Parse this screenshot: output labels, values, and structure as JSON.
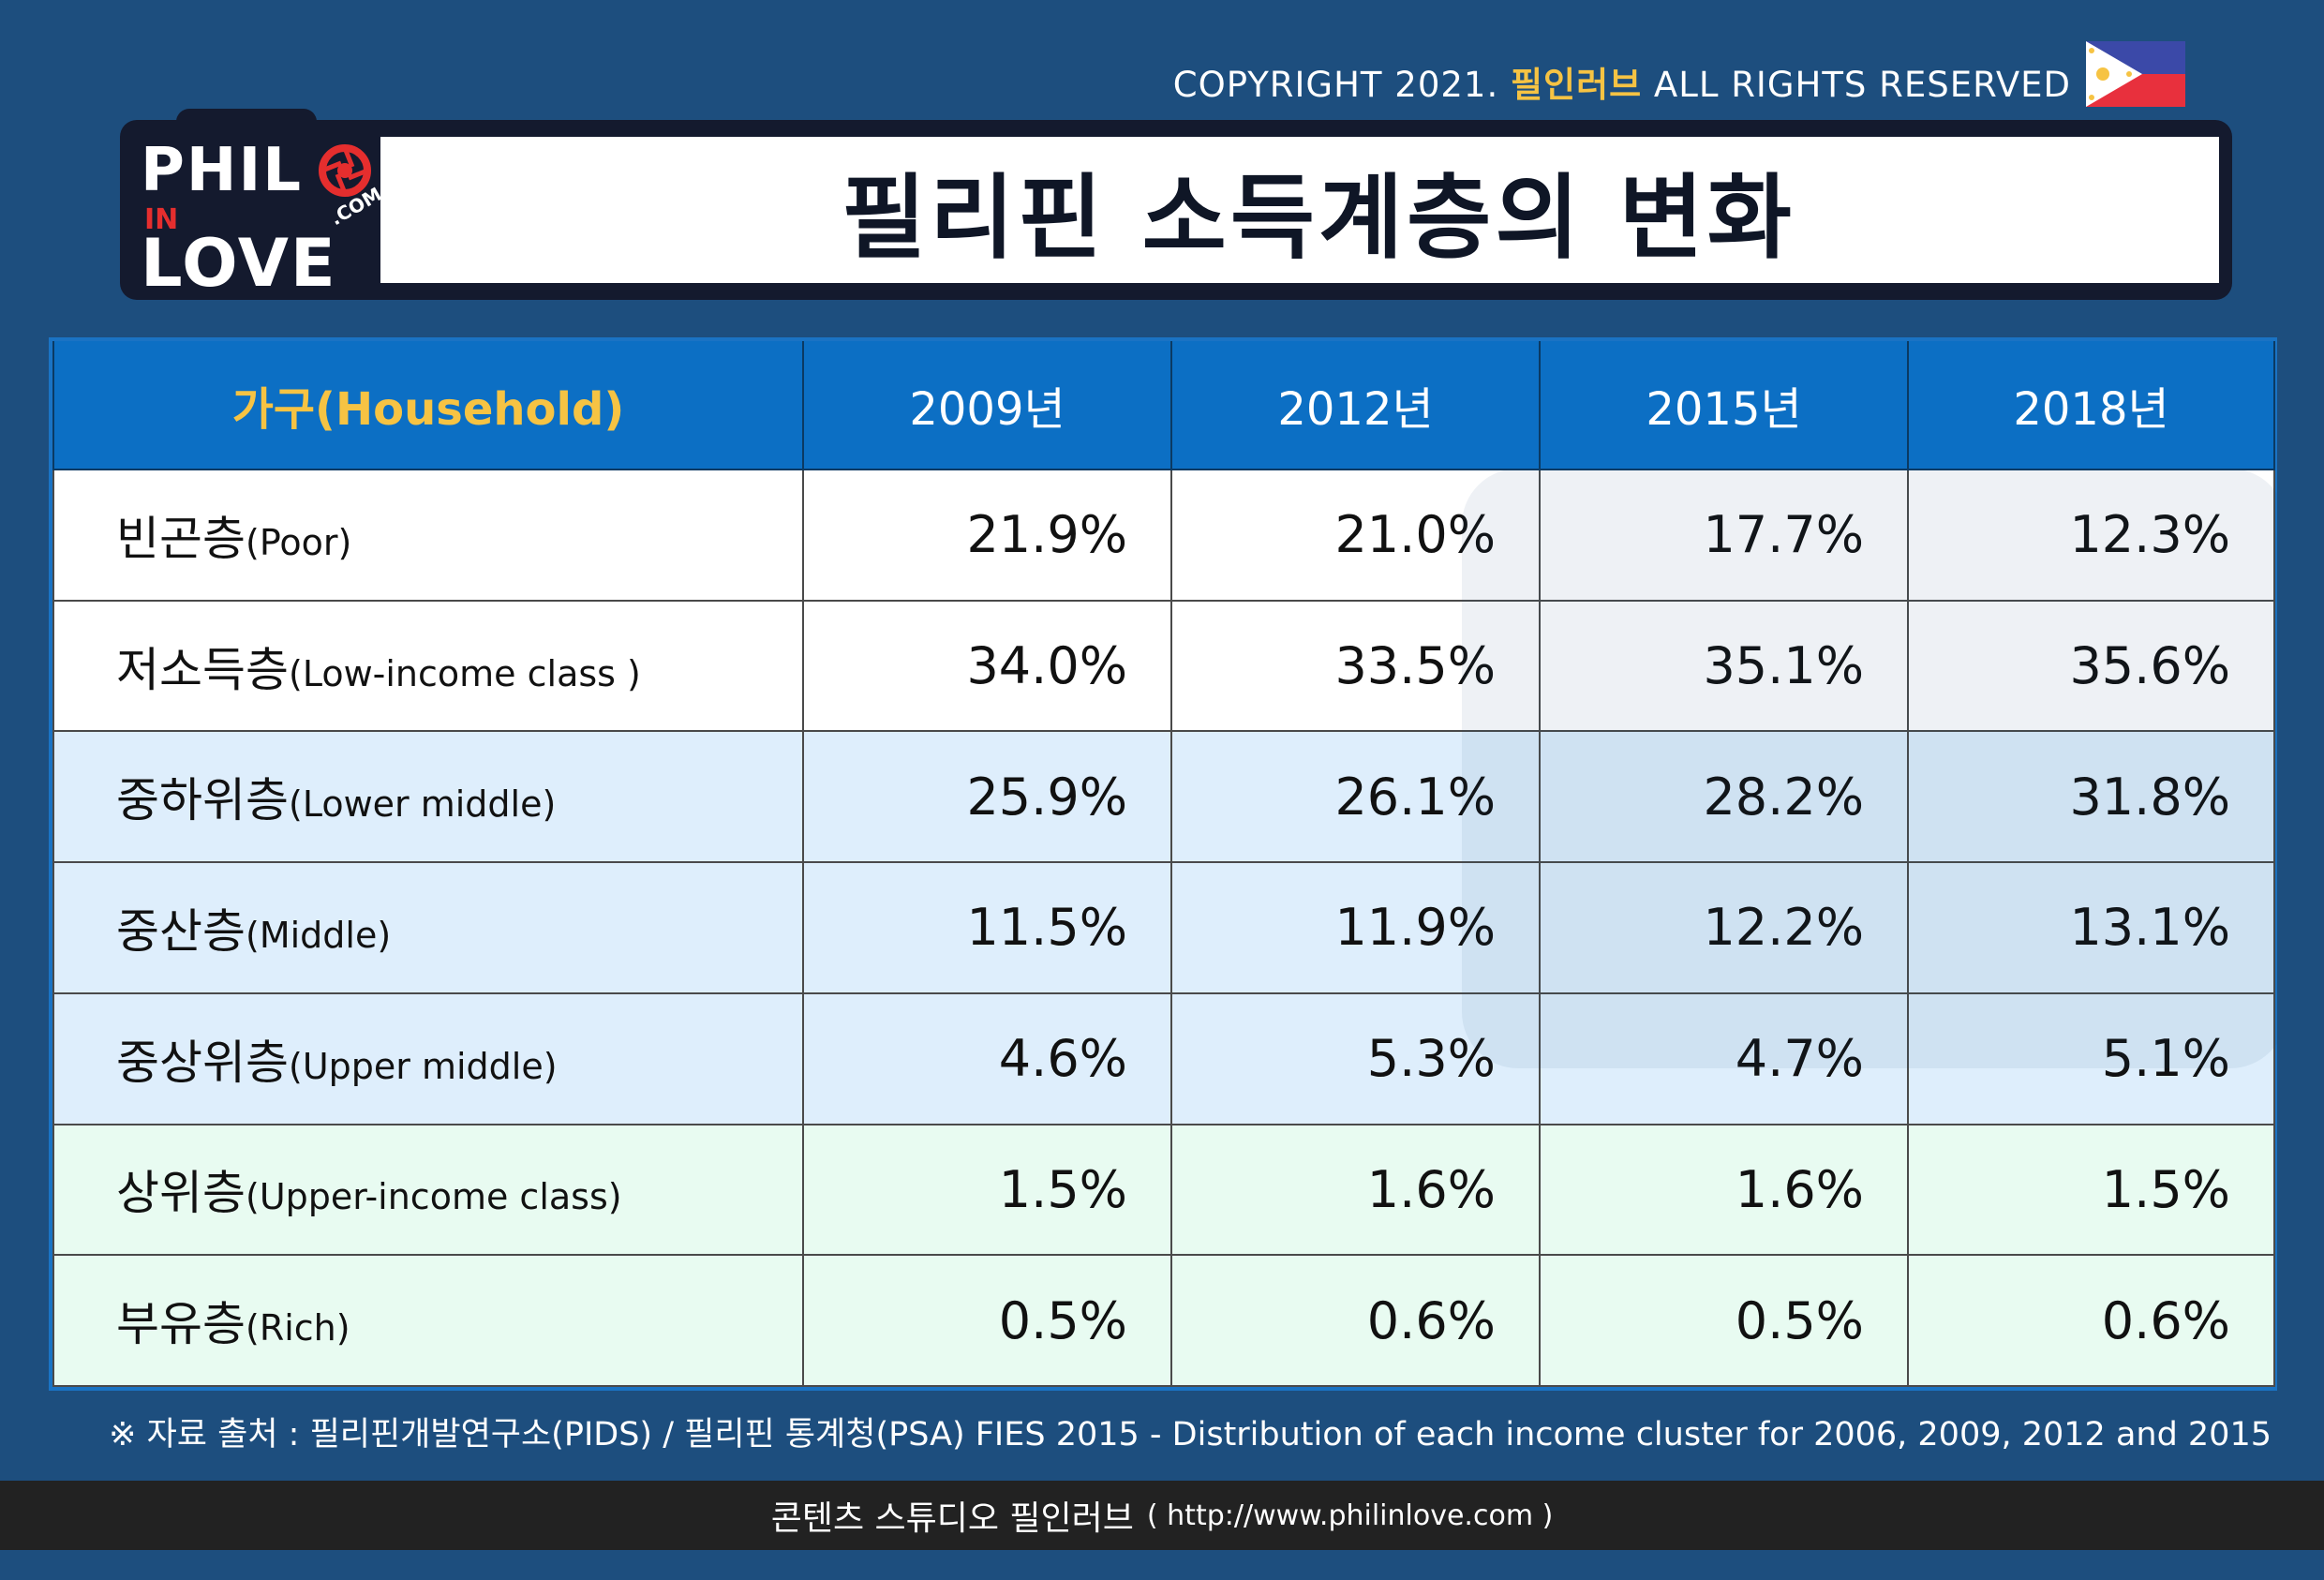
{
  "copyright": {
    "prefix": "COPYRIGHT 2021.",
    "brand": "필인러브",
    "suffix": "ALL RIGHTS RESERVED"
  },
  "logo": {
    "line1": "PHIL",
    "line2": "IN",
    "line3": "LOVE",
    "domain": ".COM"
  },
  "title": "필리핀 소득계층의 변화",
  "table": {
    "headers": [
      "가구(Household)",
      "2009년",
      "2012년",
      "2015년",
      "2018년"
    ],
    "rows": [
      {
        "ko": "빈곤층",
        "en": "(Poor)",
        "values": [
          "21.9%",
          "21.0%",
          "17.7%",
          "12.3%"
        ]
      },
      {
        "ko": "저소득층",
        "en": "(Low-income class )",
        "values": [
          "34.0%",
          "33.5%",
          "35.1%",
          "35.6%"
        ]
      },
      {
        "ko": "중하위층",
        "en": "(Lower middle)",
        "values": [
          "25.9%",
          "26.1%",
          "28.2%",
          "31.8%"
        ]
      },
      {
        "ko": "중산층",
        "en": "(Middle)",
        "values": [
          "11.5%",
          "11.9%",
          "12.2%",
          "13.1%"
        ]
      },
      {
        "ko": "중상위층",
        "en": "(Upper middle)",
        "values": [
          "4.6%",
          "5.3%",
          "4.7%",
          "5.1%"
        ]
      },
      {
        "ko": "상위층",
        "en": "(Upper-income class)",
        "values": [
          "1.5%",
          "1.6%",
          "1.6%",
          "1.5%"
        ]
      },
      {
        "ko": "부유층",
        "en": "(Rich)",
        "values": [
          "0.5%",
          "0.6%",
          "0.5%",
          "0.6%"
        ]
      }
    ]
  },
  "source": "※ 자료 출처 : 필리핀개발연구소(PIDS) / 필리핀 통계청(PSA) FIES 2015 - Distribution of each income cluster for 2006, 2009, 2012 and 2015",
  "footer": {
    "studio": "콘텐츠 스튜디오 필인러브",
    "url": "( http://www.philinlove.com )"
  },
  "colors": {
    "background": "#1d4e7e",
    "header": "#0c6fc4",
    "accent": "#f6c343",
    "title_frame": "#141a2e"
  },
  "icons": {
    "flag": "philippines-flag-icon",
    "logo_aperture": "aperture-icon"
  }
}
